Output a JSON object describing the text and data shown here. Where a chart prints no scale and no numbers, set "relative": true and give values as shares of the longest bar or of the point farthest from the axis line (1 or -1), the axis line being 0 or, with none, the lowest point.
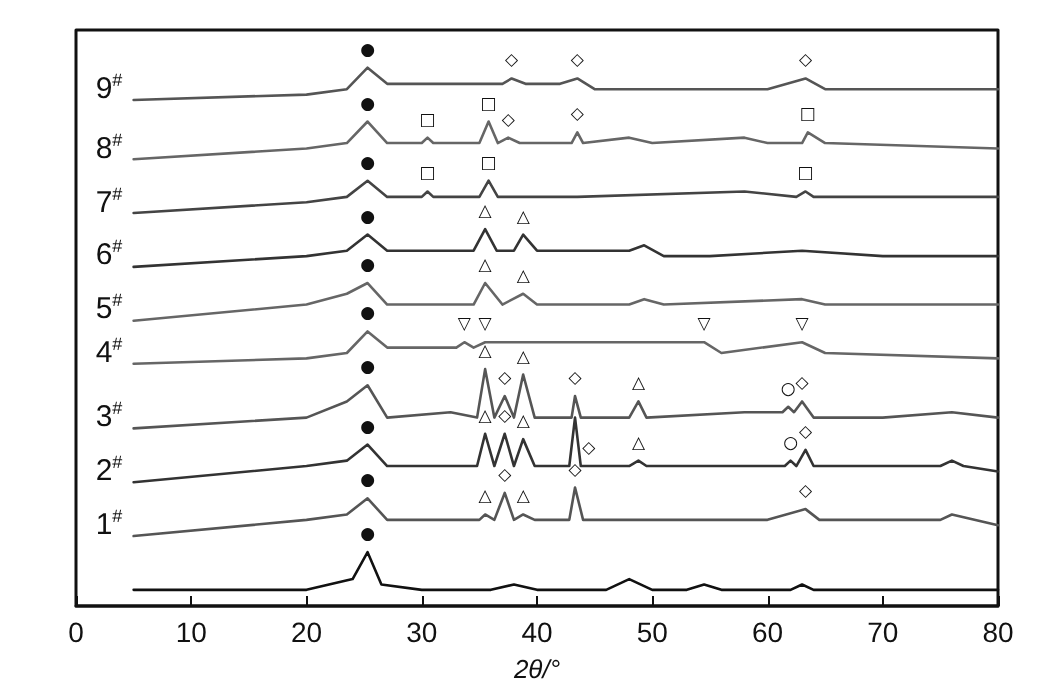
{
  "chart_data": {
    "type": "line",
    "relative": true,
    "xlabel": "2θ/°",
    "xlim": [
      0,
      80
    ],
    "xticks": [
      0,
      10,
      20,
      30,
      40,
      50,
      60,
      70,
      80
    ],
    "series": [
      {
        "color": "#111111",
        "x": [
          5,
          20,
          24,
          25.3,
          26.5,
          30,
          36,
          38,
          40,
          46,
          48,
          50,
          53,
          54.5,
          56,
          62,
          63,
          64,
          75,
          80
        ],
        "values": [
          0.03,
          0.03,
          0.05,
          0.1,
          0.04,
          0.03,
          0.03,
          0.04,
          0.03,
          0.03,
          0.05,
          0.03,
          0.03,
          0.04,
          0.03,
          0.03,
          0.04,
          0.03,
          0.03,
          0.03
        ]
      },
      {
        "name": "1$^{#}$",
        "color": "#555555",
        "x": [
          5,
          20,
          23.5,
          25.3,
          27,
          35,
          35.5,
          36.3,
          37.2,
          38,
          38.8,
          39.8,
          42.8,
          43.3,
          44,
          60,
          63.3,
          64.5,
          75,
          76,
          80
        ],
        "values": [
          0.13,
          0.16,
          0.17,
          0.2,
          0.16,
          0.16,
          0.17,
          0.16,
          0.21,
          0.16,
          0.17,
          0.16,
          0.16,
          0.22,
          0.16,
          0.16,
          0.18,
          0.16,
          0.16,
          0.17,
          0.15
        ]
      },
      {
        "name": "2$^{#}$",
        "color": "#333333",
        "x": [
          5,
          20,
          23.5,
          25.3,
          27,
          34.8,
          35.5,
          36.3,
          37.2,
          38,
          38.8,
          39.8,
          42.8,
          43.3,
          43.8,
          44.5,
          48,
          48.8,
          49.5,
          61.5,
          62,
          62.5,
          63.3,
          64,
          75,
          76,
          77,
          80
        ],
        "values": [
          0.23,
          0.26,
          0.27,
          0.3,
          0.26,
          0.26,
          0.32,
          0.26,
          0.32,
          0.26,
          0.31,
          0.26,
          0.26,
          0.35,
          0.26,
          0.26,
          0.26,
          0.27,
          0.26,
          0.26,
          0.27,
          0.26,
          0.29,
          0.26,
          0.26,
          0.27,
          0.26,
          0.25
        ]
      },
      {
        "name": "3$^{#}$",
        "color": "#555555",
        "x": [
          5,
          20,
          23.5,
          25.3,
          27,
          32.5,
          34.8,
          35.5,
          36.3,
          37.2,
          38,
          38.8,
          39.8,
          43,
          43.3,
          43.8,
          48,
          48.8,
          49.5,
          58,
          61.3,
          61.8,
          62.3,
          63,
          64,
          70,
          76,
          80
        ],
        "values": [
          0.33,
          0.35,
          0.38,
          0.41,
          0.35,
          0.36,
          0.35,
          0.44,
          0.35,
          0.39,
          0.35,
          0.43,
          0.35,
          0.35,
          0.39,
          0.35,
          0.35,
          0.38,
          0.35,
          0.36,
          0.36,
          0.37,
          0.36,
          0.38,
          0.35,
          0.35,
          0.36,
          0.35
        ]
      },
      {
        "name": "4$^{#}$",
        "color": "#666666",
        "x": [
          5,
          20,
          23.5,
          25.3,
          27,
          33,
          33.7,
          34.5,
          35.5,
          37,
          48,
          54.5,
          56,
          63,
          65,
          80
        ],
        "values": [
          0.45,
          0.46,
          0.47,
          0.51,
          0.48,
          0.48,
          0.49,
          0.48,
          0.49,
          0.49,
          0.49,
          0.49,
          0.47,
          0.49,
          0.47,
          0.46
        ]
      },
      {
        "name": "5$^{#}$",
        "color": "#666666",
        "x": [
          5,
          20,
          23.5,
          25.3,
          27,
          34.5,
          35.5,
          37,
          38.8,
          40,
          48,
          49.3,
          51,
          63,
          65,
          80
        ],
        "values": [
          0.53,
          0.56,
          0.58,
          0.6,
          0.56,
          0.56,
          0.6,
          0.56,
          0.58,
          0.56,
          0.56,
          0.57,
          0.56,
          0.57,
          0.56,
          0.56
        ]
      },
      {
        "name": "6$^{#}$",
        "color": "#333333",
        "x": [
          5,
          20,
          23.5,
          25.3,
          27,
          34.5,
          35.5,
          36.5,
          38,
          38.8,
          40,
          48,
          49.3,
          51,
          55,
          63,
          70,
          80
        ],
        "values": [
          0.63,
          0.65,
          0.66,
          0.69,
          0.66,
          0.66,
          0.7,
          0.66,
          0.66,
          0.69,
          0.66,
          0.66,
          0.67,
          0.65,
          0.65,
          0.66,
          0.65,
          0.65
        ]
      },
      {
        "name": "7$^{#}$",
        "color": "#444444",
        "x": [
          5,
          20,
          23.5,
          25.3,
          27,
          30,
          30.5,
          31,
          35,
          35.8,
          36.6,
          43.5,
          58,
          62.5,
          63.3,
          64,
          80
        ],
        "values": [
          0.73,
          0.75,
          0.76,
          0.79,
          0.76,
          0.76,
          0.77,
          0.76,
          0.76,
          0.79,
          0.76,
          0.76,
          0.77,
          0.76,
          0.77,
          0.76,
          0.76
        ]
      },
      {
        "name": "8$^{#}$",
        "color": "#666666",
        "x": [
          5,
          20,
          23.5,
          25.3,
          27,
          30,
          30.5,
          31,
          35,
          35.8,
          36.6,
          37.5,
          38.5,
          43,
          43.5,
          44,
          48,
          50,
          58,
          60,
          63,
          63.5,
          65,
          80
        ],
        "values": [
          0.83,
          0.85,
          0.86,
          0.9,
          0.86,
          0.86,
          0.87,
          0.86,
          0.86,
          0.9,
          0.86,
          0.87,
          0.86,
          0.86,
          0.88,
          0.86,
          0.87,
          0.86,
          0.87,
          0.86,
          0.86,
          0.88,
          0.86,
          0.85
        ]
      },
      {
        "name": "9$^{#}$",
        "color": "#555555",
        "x": [
          5,
          20,
          23.5,
          25.3,
          27,
          33,
          37,
          37.8,
          39,
          42,
          43.5,
          45,
          50,
          55,
          60,
          63.3,
          65,
          70,
          80
        ],
        "values": [
          0.94,
          0.95,
          0.96,
          1.0,
          0.97,
          0.97,
          0.97,
          0.98,
          0.97,
          0.97,
          0.98,
          0.96,
          0.96,
          0.96,
          0.96,
          0.98,
          0.96,
          0.96,
          0.96
        ]
      }
    ],
    "annotations": [
      {
        "text": "●",
        "x": 25.3,
        "y": 0.1
      },
      {
        "text": "●",
        "x": 25.3,
        "y": 0.2
      },
      {
        "text": "△",
        "x": 35.5,
        "y": 0.17
      },
      {
        "text": "◇",
        "x": 37.2,
        "y": 0.21
      },
      {
        "text": "△",
        "x": 38.8,
        "y": 0.17
      },
      {
        "text": "◇",
        "x": 43.3,
        "y": 0.22
      },
      {
        "text": "◇",
        "x": 63.3,
        "y": 0.18
      },
      {
        "text": "●",
        "x": 25.3,
        "y": 0.3
      },
      {
        "text": "△",
        "x": 35.5,
        "y": 0.32
      },
      {
        "text": "◇",
        "x": 37.2,
        "y": 0.32
      },
      {
        "text": "△",
        "x": 38.8,
        "y": 0.31
      },
      {
        "text": "◇",
        "x": 44.5,
        "y": 0.26
      },
      {
        "text": "△",
        "x": 48.8,
        "y": 0.27
      },
      {
        "text": "○",
        "x": 62,
        "y": 0.27
      },
      {
        "text": "◇",
        "x": 63.3,
        "y": 0.29
      },
      {
        "text": "●",
        "x": 25.3,
        "y": 0.41
      },
      {
        "text": "△",
        "x": 35.5,
        "y": 0.44
      },
      {
        "text": "◇",
        "x": 37.2,
        "y": 0.39
      },
      {
        "text": "△",
        "x": 38.8,
        "y": 0.43
      },
      {
        "text": "◇",
        "x": 43.3,
        "y": 0.39
      },
      {
        "text": "△",
        "x": 48.8,
        "y": 0.38
      },
      {
        "text": "○",
        "x": 61.8,
        "y": 0.37
      },
      {
        "text": "◇",
        "x": 63,
        "y": 0.38
      },
      {
        "text": "●",
        "x": 25.3,
        "y": 0.51
      },
      {
        "text": "▽",
        "x": 33.7,
        "y": 0.49
      },
      {
        "text": "▽",
        "x": 35.5,
        "y": 0.49
      },
      {
        "text": "▽",
        "x": 54.5,
        "y": 0.49
      },
      {
        "text": "▽",
        "x": 63,
        "y": 0.49
      },
      {
        "text": "●",
        "x": 25.3,
        "y": 0.6
      },
      {
        "text": "△",
        "x": 35.5,
        "y": 0.6
      },
      {
        "text": "△",
        "x": 38.8,
        "y": 0.58
      },
      {
        "text": "●",
        "x": 25.3,
        "y": 0.69
      },
      {
        "text": "△",
        "x": 35.5,
        "y": 0.7
      },
      {
        "text": "△",
        "x": 38.8,
        "y": 0.69
      },
      {
        "text": "●",
        "x": 25.3,
        "y": 0.79
      },
      {
        "text": "□",
        "x": 30.5,
        "y": 0.77
      },
      {
        "text": "□",
        "x": 35.8,
        "y": 0.79
      },
      {
        "text": "□",
        "x": 63.3,
        "y": 0.77
      },
      {
        "text": "●",
        "x": 25.3,
        "y": 0.9
      },
      {
        "text": "□",
        "x": 30.5,
        "y": 0.87
      },
      {
        "text": "□",
        "x": 35.8,
        "y": 0.9
      },
      {
        "text": "◇",
        "x": 37.5,
        "y": 0.87
      },
      {
        "text": "◇",
        "x": 43.5,
        "y": 0.88
      },
      {
        "text": "□",
        "x": 63.5,
        "y": 0.88
      },
      {
        "text": "●",
        "x": 25.3,
        "y": 1.0
      },
      {
        "text": "◇",
        "x": 37.8,
        "y": 0.98
      },
      {
        "text": "◇",
        "x": 43.5,
        "y": 0.98
      },
      {
        "text": "◇",
        "x": 63.3,
        "y": 0.98
      }
    ]
  }
}
